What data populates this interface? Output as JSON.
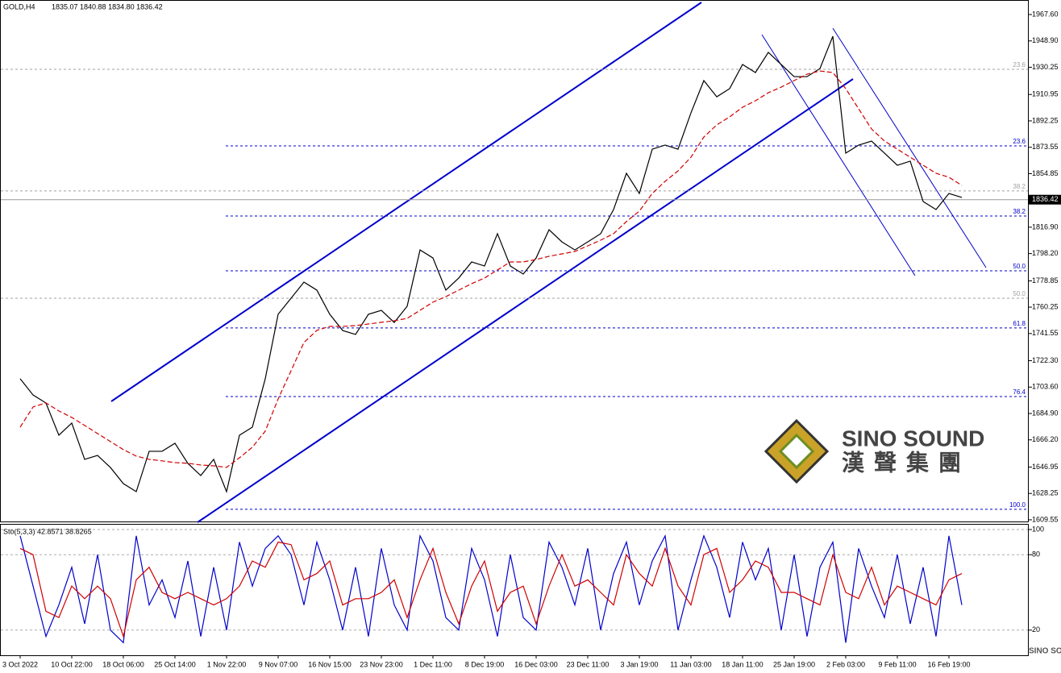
{
  "chart_data": [
    {
      "type": "line",
      "title": "GOLD,H4",
      "subtitle": "1835.07 1840.88 1834.80 1836.42",
      "categories": [
        "3 Oct 2022",
        null,
        null,
        null,
        "10 Oct 22:00",
        null,
        null,
        null,
        "18 Oct 06:00",
        null,
        null,
        null,
        "25 Oct 14:00",
        null,
        null,
        null,
        "1 Nov 22:00",
        null,
        null,
        null,
        "9 Nov 07:00",
        null,
        null,
        null,
        "16 Nov 15:00",
        null,
        null,
        null,
        "23 Nov 23:00",
        null,
        null,
        null,
        "1 Dec 11:00",
        null,
        null,
        null,
        "8 Dec 19:00",
        null,
        null,
        null,
        "16 Dec 03:00",
        null,
        null,
        null,
        "23 Dec 11:00",
        null,
        null,
        null,
        "3 Jan 19:00",
        null,
        null,
        null,
        "11 Jan 03:00",
        null,
        null,
        null,
        "18 Jan 11:00",
        null,
        null,
        null,
        "25 Jan 19:00",
        null,
        null,
        null,
        "2 Feb 03:00",
        null,
        null,
        null,
        "9 Feb 11:00",
        null,
        null,
        null,
        "16 Feb 19:00",
        null
      ],
      "series": [
        {
          "color": "#000000",
          "values": [
            1709.5,
            1698.0,
            1692.3,
            1669.5,
            1678.1,
            1652.4,
            1655.2,
            1646.6,
            1635.2,
            1629.5,
            1658.1,
            1658.1,
            1663.8,
            1649.5,
            1640.9,
            1652.4,
            1629.5,
            1669.5,
            1675.2,
            1709.5,
            1755.2,
            1766.6,
            1778.0,
            1772.3,
            1755.2,
            1743.7,
            1740.9,
            1755.2,
            1758.0,
            1749.4,
            1760.9,
            1800.8,
            1795.1,
            1772.3,
            1780.9,
            1792.3,
            1789.4,
            1812.3,
            1789.4,
            1783.7,
            1795.1,
            1815.1,
            1806.5,
            1800.8,
            1806.5,
            1812.3,
            1829.4,
            1855.1,
            1840.8,
            1872.2,
            1875.1,
            1872.2,
            1897.9,
            1920.8,
            1909.3,
            1915.1,
            1932.2,
            1926.5,
            1940.8,
            1932.2,
            1923.6,
            1923.6,
            1929.3,
            1952.2,
            1869.4,
            1875.1,
            1877.9,
            1869.4,
            1860.8,
            1863.7,
            1835.1,
            1829.4,
            1840.8,
            1838.0
          ]
        },
        {
          "color": "#d00000",
          "dashed": true,
          "values": [
            1675.2,
            1689.5,
            1692.4,
            1686.7,
            1682.1,
            1676.4,
            1670.7,
            1665.0,
            1659.3,
            1654.7,
            1652.4,
            1651.3,
            1650.1,
            1649.6,
            1648.4,
            1647.8,
            1646.7,
            1653.5,
            1661.0,
            1672.4,
            1695.2,
            1715.2,
            1735.2,
            1743.8,
            1746.6,
            1746.6,
            1747.2,
            1748.3,
            1749.5,
            1750.6,
            1752.3,
            1758.0,
            1763.8,
            1767.7,
            1772.3,
            1776.9,
            1780.9,
            1786.6,
            1792.3,
            1792.3,
            1794.0,
            1796.3,
            1798.0,
            1799.7,
            1803.7,
            1807.7,
            1812.3,
            1820.9,
            1828.3,
            1840.8,
            1849.4,
            1856.8,
            1866.5,
            1880.8,
            1889.4,
            1895.1,
            1901.9,
            1906.5,
            1912.2,
            1916.2,
            1920.8,
            1925.3,
            1927.6,
            1926.5,
            1915.1,
            1900.8,
            1886.5,
            1878.0,
            1872.2,
            1866.5,
            1860.8,
            1855.1,
            1852.3,
            1846.5
          ]
        }
      ],
      "ylim": [
        1607.8,
        1977.9
      ],
      "yticks": [
        {
          "value": 1967.6,
          "label": "1967.60"
        },
        {
          "value": 1948.9,
          "label": "1948.90"
        },
        1930.25,
        1910.95,
        1892.25,
        1873.55,
        1854.85,
        {
          "value": 1816.9,
          "label": "1816.90"
        },
        {
          "value": 1798.2,
          "label": "1798.20"
        },
        1778.85,
        1760.25,
        1741.55,
        {
          "value": 1722.3,
          "label": "1722.30"
        },
        {
          "value": 1703.6,
          "label": "1703.60"
        },
        {
          "value": 1684.9,
          "label": "1684.90"
        },
        {
          "value": 1666.2,
          "label": "1666.20"
        },
        1646.95,
        1628.25,
        1609.55
      ],
      "last_price": 1836.42,
      "fib_levels": [
        {
          "value": 1874.5,
          "label": "23.6",
          "color": "#0000cc"
        },
        {
          "value": 1824.8,
          "label": "38.2",
          "color": "#0000cc"
        },
        {
          "value": 1786.0,
          "label": "50.0",
          "color": "#0000cc"
        },
        {
          "value": 1745.5,
          "label": "61.8",
          "color": "#0000cc"
        },
        {
          "value": 1696.9,
          "label": "76.4",
          "color": "#0000cc"
        },
        {
          "value": 1617.0,
          "label": "100.0",
          "color": "#0000cc"
        },
        {
          "value": 1928.8,
          "label": "23.6",
          "color": "#a0a0a0"
        },
        {
          "value": 1842.6,
          "label": "38.2",
          "color": "#a0a0a0"
        },
        {
          "value": 1766.6,
          "label": "50.0",
          "color": "#a0a0a0"
        }
      ],
      "watermark": {
        "title": "SINO SOUND",
        "subtitle": "漢聲集團"
      }
    },
    {
      "type": "line",
      "title": "Sto(5,3,3) 42.8571 38.8265",
      "series": [
        {
          "color": "#0000cc",
          "values": [
            95,
            55,
            15,
            40,
            70,
            25,
            80,
            20,
            10,
            95,
            40,
            60,
            30,
            75,
            15,
            70,
            20,
            90,
            55,
            85,
            95,
            80,
            40,
            90,
            60,
            20,
            70,
            15,
            85,
            40,
            20,
            95,
            75,
            30,
            20,
            85,
            60,
            15,
            80,
            30,
            20,
            90,
            70,
            40,
            85,
            20,
            65,
            90,
            40,
            75,
            95,
            20,
            60,
            95,
            70,
            30,
            90,
            60,
            85,
            20,
            80,
            15,
            70,
            90,
            10,
            85,
            55,
            30,
            80,
            25,
            70,
            15,
            95,
            40
          ]
        },
        {
          "color": "#d00000",
          "values": [
            85,
            80,
            35,
            30,
            55,
            45,
            55,
            45,
            15,
            60,
            70,
            50,
            45,
            50,
            45,
            40,
            45,
            55,
            75,
            70,
            90,
            88,
            60,
            65,
            75,
            40,
            45,
            45,
            50,
            60,
            30,
            60,
            85,
            50,
            25,
            55,
            75,
            35,
            50,
            55,
            25,
            55,
            80,
            55,
            60,
            50,
            40,
            80,
            65,
            55,
            85,
            55,
            40,
            80,
            85,
            50,
            60,
            75,
            70,
            50,
            50,
            45,
            40,
            80,
            50,
            45,
            70,
            40,
            55,
            50,
            45,
            40,
            60,
            65
          ]
        }
      ],
      "ylim": [
        0,
        100
      ],
      "yticks": [
        20,
        80,
        100
      ],
      "grid": true
    }
  ]
}
